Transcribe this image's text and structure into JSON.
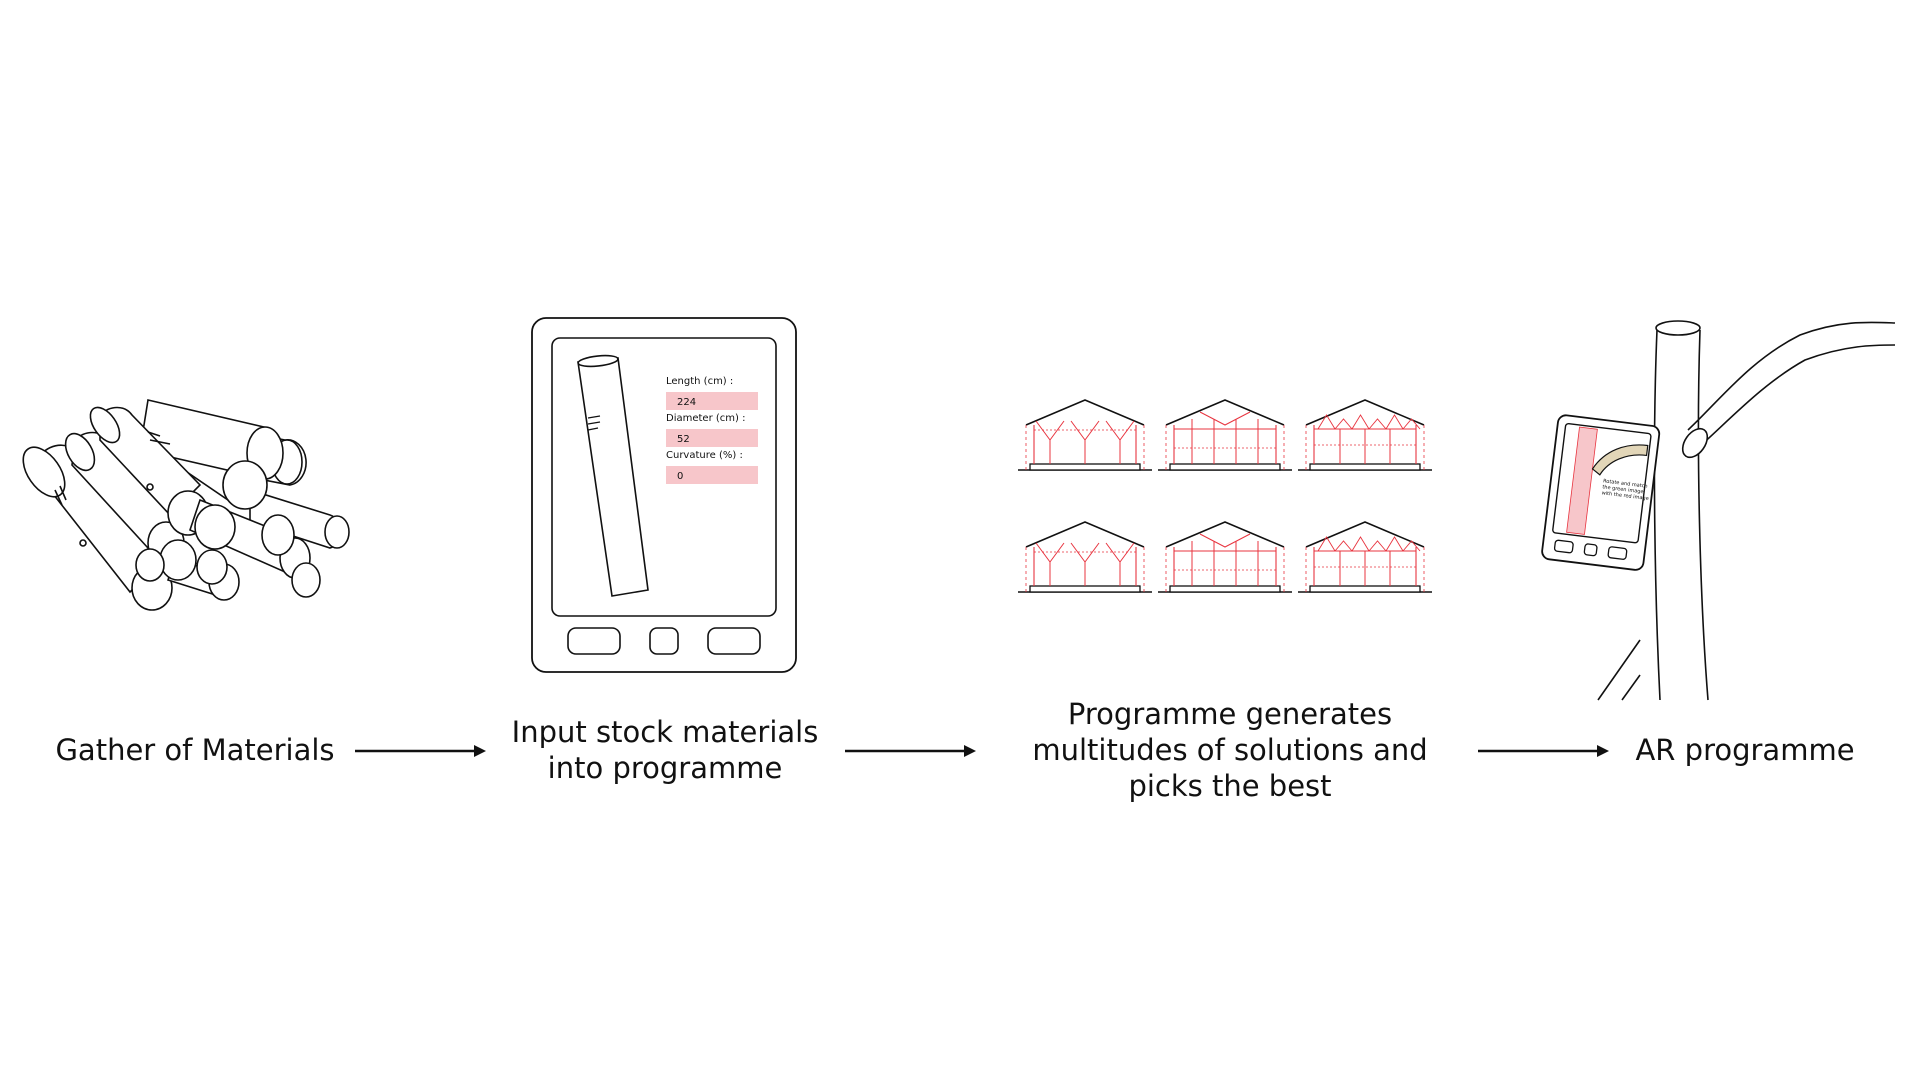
{
  "steps": [
    {
      "label": "Gather of Materials"
    },
    {
      "label": "Input stock materials into programme"
    },
    {
      "label": "Programme generates multitudes of solutions and picks the best"
    },
    {
      "label": "AR programme"
    }
  ],
  "tablet_form": {
    "length_label": "Length (cm) :",
    "length_value": "224",
    "diameter_label": "Diameter (cm) :",
    "diameter_value": "52",
    "curvature_label": "Curvature (%) :",
    "curvature_value": "0"
  },
  "ar_screen_text": "Rotate and match the green image with the red image",
  "colors": {
    "accent": "#f7c6ca",
    "frame_red": "#e8343f",
    "stroke": "#111111",
    "wood": "#e2d6b8"
  }
}
